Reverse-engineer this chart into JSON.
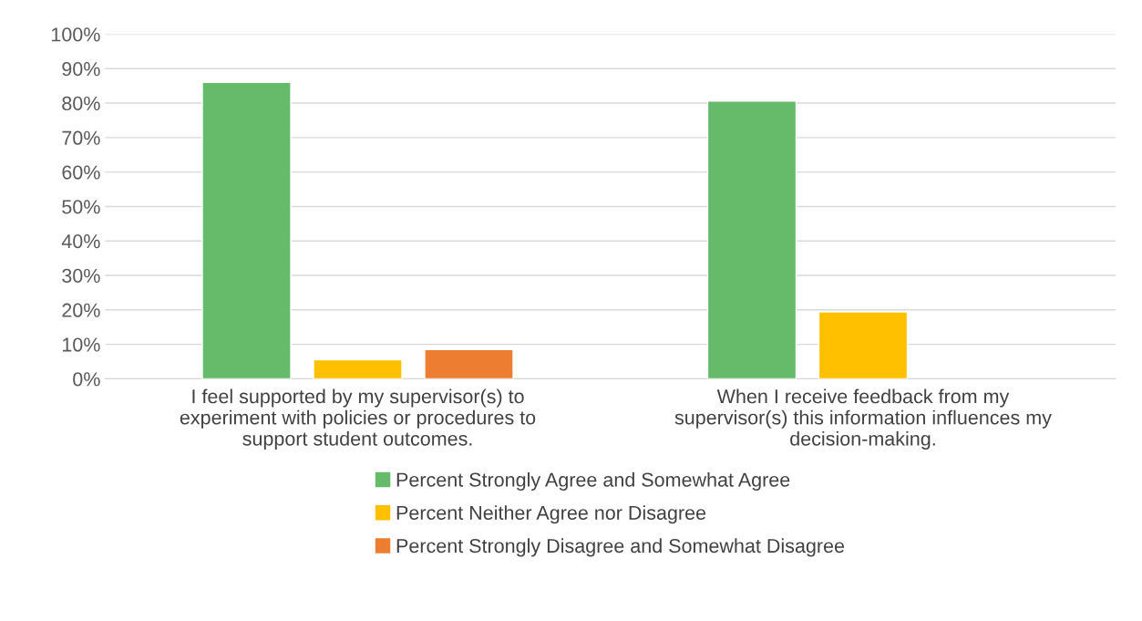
{
  "chart_data": {
    "type": "bar",
    "categories": [
      "I feel supported by my supervisor(s) to\nexperiment with policies or procedures to\nsupport student outcomes.",
      "When I receive feedback from my\nsupervisor(s) this information influences my\ndecision-making."
    ],
    "series": [
      {
        "name": "Percent Strongly Agree and Somewhat Agree",
        "color": "#66bb6a",
        "values": [
          86,
          80.6
        ]
      },
      {
        "name": "Percent Neither Agree nor Disagree",
        "color": "#ffc000",
        "values": [
          5.5,
          19.4
        ]
      },
      {
        "name": "Percent Strongly Disagree and Somewhat Disagree",
        "color": "#ed7d31",
        "values": [
          8.5,
          null
        ]
      }
    ],
    "ylim": [
      0,
      100
    ],
    "yticks": [
      {
        "value": 0,
        "label": "0%"
      },
      {
        "value": 10,
        "label": "10%"
      },
      {
        "value": 20,
        "label": "20%"
      },
      {
        "value": 30,
        "label": "30%"
      },
      {
        "value": 40,
        "label": "40%"
      },
      {
        "value": 50,
        "label": "50%"
      },
      {
        "value": 60,
        "label": "60%"
      },
      {
        "value": 70,
        "label": "70%"
      },
      {
        "value": 80,
        "label": "80%"
      },
      {
        "value": 90,
        "label": "90%"
      },
      {
        "value": 100,
        "label": "100%"
      }
    ],
    "grid": "y",
    "legend": "bottom"
  }
}
